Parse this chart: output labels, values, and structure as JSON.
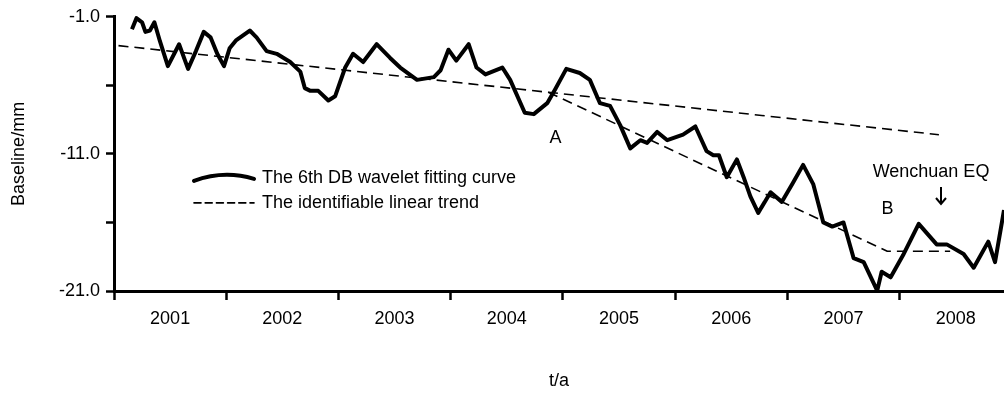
{
  "chart_data": {
    "type": "line",
    "xlabel": "t/a",
    "ylabel": "Baseline/mm",
    "xlim": [
      2001,
      2008.93
    ],
    "xticks": [
      {
        "value": 2001,
        "label": null
      },
      {
        "value": 2001.5,
        "label": "2001"
      },
      {
        "value": 2002,
        "label": null
      },
      {
        "value": 2002.5,
        "label": "2002"
      },
      {
        "value": 2003,
        "label": null
      },
      {
        "value": 2003.5,
        "label": "2003"
      },
      {
        "value": 2004,
        "label": null
      },
      {
        "value": 2004.5,
        "label": "2004"
      },
      {
        "value": 2005,
        "label": null
      },
      {
        "value": 2005.5,
        "label": "2005"
      },
      {
        "value": 2006,
        "label": null
      },
      {
        "value": 2006.5,
        "label": "2006"
      },
      {
        "value": 2007,
        "label": null
      },
      {
        "value": 2007.5,
        "label": "2007"
      },
      {
        "value": 2008,
        "label": null
      },
      {
        "value": 2008.5,
        "label": "2008"
      }
    ],
    "ylim": [
      -21,
      -1
    ],
    "yticks": [
      {
        "value": -1,
        "label": "-1.0"
      },
      {
        "value": -6,
        "label": null
      },
      {
        "value": -11,
        "label": "-11.0"
      },
      {
        "value": -16,
        "label": null
      },
      {
        "value": -21,
        "label": "-21.0"
      }
    ],
    "grid": false,
    "legend": "left",
    "marker": "none",
    "series": [
      {
        "name": "The 6th DB wavelet fitting curve",
        "color": "#000000",
        "line_style": "solid",
        "x": [
          2001.16,
          2001.2,
          2001.25,
          2001.28,
          2001.32,
          2001.36,
          2001.41,
          2001.48,
          2001.58,
          2001.66,
          2001.73,
          2001.8,
          2001.86,
          2001.92,
          2001.98,
          2002.03,
          2002.09,
          2002.21,
          2002.27,
          2002.36,
          2002.45,
          2002.57,
          2002.66,
          2002.7,
          2002.75,
          2002.82,
          2002.91,
          2002.97,
          2003.06,
          2003.13,
          2003.22,
          2003.34,
          2003.46,
          2003.55,
          2003.7,
          2003.85,
          2003.91,
          2003.98,
          2004.05,
          2004.16,
          2004.23,
          2004.31,
          2004.46,
          2004.53,
          2004.66,
          2004.74,
          2004.86,
          2004.93,
          2005.03,
          2005.15,
          2005.24,
          2005.33,
          2005.42,
          2005.51,
          2005.6,
          2005.69,
          2005.75,
          2005.84,
          2005.93,
          2006.07,
          2006.18,
          2006.28,
          2006.34,
          2006.39,
          2006.46,
          2006.55,
          2006.61,
          2006.67,
          2006.74,
          2006.85,
          2006.95,
          2007.05,
          2007.14,
          2007.23,
          2007.32,
          2007.4,
          2007.5,
          2007.59,
          2007.68,
          2007.8,
          2007.84,
          2007.92,
          2008.03,
          2008.17,
          2008.33,
          2008.42,
          2008.57,
          2008.66,
          2008.79,
          2008.85,
          2008.93
        ],
        "values": [
          -1.9,
          -1.1,
          -1.4,
          -2.1,
          -2.0,
          -1.4,
          -2.8,
          -4.6,
          -3.0,
          -4.8,
          -3.5,
          -2.1,
          -2.5,
          -3.7,
          -4.6,
          -3.3,
          -2.7,
          -2.0,
          -2.5,
          -3.5,
          -3.7,
          -4.3,
          -5.0,
          -6.2,
          -6.4,
          -6.4,
          -7.1,
          -6.8,
          -4.7,
          -3.7,
          -4.3,
          -3.0,
          -4.0,
          -4.7,
          -5.6,
          -5.4,
          -4.9,
          -3.4,
          -4.2,
          -3.0,
          -4.7,
          -5.2,
          -4.7,
          -5.6,
          -8.0,
          -8.1,
          -7.3,
          -6.3,
          -4.8,
          -5.1,
          -5.6,
          -7.3,
          -7.5,
          -8.9,
          -10.6,
          -10.0,
          -10.2,
          -9.4,
          -10.0,
          -9.6,
          -9.0,
          -10.8,
          -11.1,
          -11.1,
          -12.7,
          -11.4,
          -12.7,
          -14.1,
          -15.3,
          -13.8,
          -14.5,
          -13.1,
          -11.8,
          -13.2,
          -16.0,
          -16.3,
          -16.0,
          -18.6,
          -18.9,
          -20.98,
          -19.6,
          -20.0,
          -18.4,
          -16.1,
          -17.6,
          -17.6,
          -18.3,
          -19.3,
          -17.4,
          -18.9,
          -15.1
        ]
      },
      {
        "name": "The identifiable linear trend",
        "color": "#000000",
        "line_style": "dashed",
        "x": [
          2001.04,
          2008.35
        ],
        "values": [
          -3.1,
          -9.6
        ]
      },
      {
        "color": "#000000",
        "line_style": "dashed",
        "x": [
          2004.87,
          2007.89,
          2008.45
        ],
        "values": [
          -6.5,
          -18.1,
          -18.1
        ]
      }
    ],
    "annotations": [
      "A",
      "B",
      "Wenchuan EQ"
    ]
  }
}
